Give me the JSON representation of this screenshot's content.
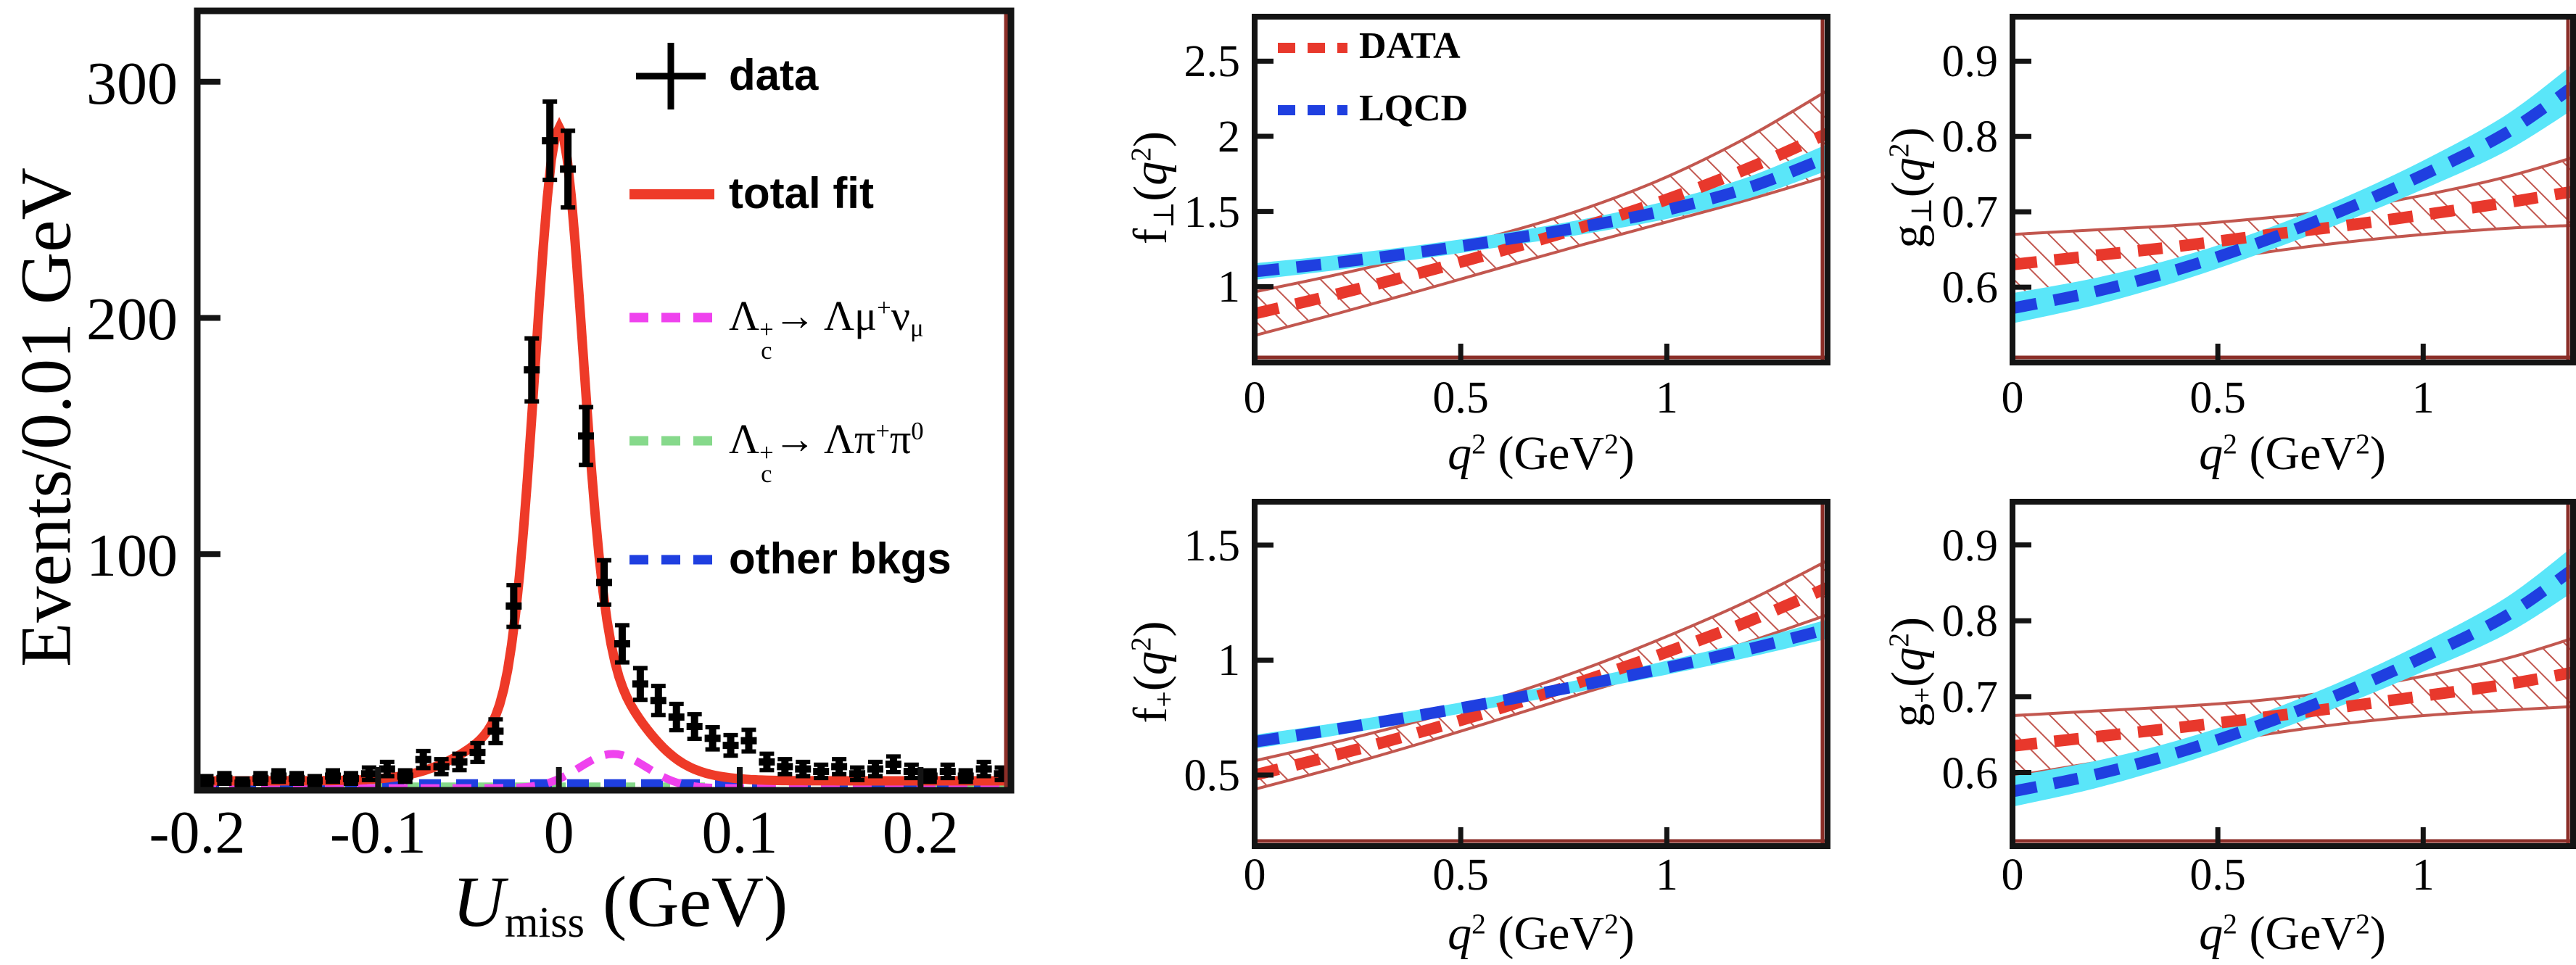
{
  "page": {
    "background": "#ffffff",
    "description_visible_text_only": true
  },
  "colors": {
    "frame": "#141414",
    "data_marker": "#000000",
    "total_fit": "#ee3a28",
    "signal_munu": "#ef42ee",
    "lambda_pipi": "#86d98b",
    "other_bkgs": "#1f3fe0",
    "data_curve": "#e8382c",
    "data_band_line": "#c2574f",
    "lqcd_curve": "#1f3fe0",
    "lqcd_band": "#5ae6f9",
    "accent_line": "#8b2e28"
  },
  "chart_data": [
    {
      "id": "umiss-fit",
      "type": "histogram",
      "title": "",
      "xlabel": "*U*_{miss} (GeV)",
      "ylabel": "Events/0.01 GeV",
      "xlim": [
        -0.2,
        0.25
      ],
      "ylim": [
        0,
        330
      ],
      "xticks": [
        "-0.2",
        "-0.1",
        "0",
        "0.1",
        "0.2"
      ],
      "xtick_vals": [
        -0.2,
        -0.1,
        0,
        0.1,
        0.2
      ],
      "yticks": [
        "100",
        "200",
        "300"
      ],
      "ytick_vals": [
        100,
        200,
        300
      ],
      "bin_width": 0.01,
      "bin_start": -0.2,
      "counts": [
        4,
        5,
        3,
        5,
        6,
        5,
        4,
        6,
        5,
        7,
        9,
        6,
        13,
        10,
        12,
        16,
        25,
        78,
        178,
        275,
        263,
        150,
        88,
        62,
        45,
        38,
        31,
        27,
        22,
        19,
        21,
        12,
        10,
        9,
        8,
        10,
        7,
        9,
        11,
        8,
        6,
        8,
        6,
        9,
        7
      ],
      "fit_components": {
        "gauss_core": {
          "amp": 240,
          "mean": 0,
          "sigma": 0.013
        },
        "gauss_wide": {
          "amp": 33,
          "mean": 0,
          "sigma": 0.037
        },
        "baseline": 4.0,
        "munu_fraction_in_total": 0.9
      },
      "munu_bump": {
        "amp": 14.5,
        "mean": 0.03,
        "sigma": 0.0185,
        "baseline": 0.9
      },
      "pipi_level": 1.6,
      "other_level": 3.0,
      "legend": [
        {
          "id": "data",
          "label": "data",
          "marker": "plus",
          "color": "#000000",
          "style": "sans"
        },
        {
          "id": "total-fit",
          "label": "total fit",
          "marker": "solid-line",
          "color": "#ee3a28",
          "style": "sans"
        },
        {
          "id": "lc-munu",
          "label": "Λ_{c}^{+}→ Λμ^{+}ν_{μ}",
          "marker": "dashed-line",
          "color": "#ef42ee",
          "style": "formula"
        },
        {
          "id": "lc-pipi",
          "label": "Λ_{c}^{+}→ Λπ^{+}π^{0}",
          "marker": "dashed-line",
          "color": "#86d98b",
          "style": "formula"
        },
        {
          "id": "other-bkgs",
          "label": "other bkgs",
          "marker": "dashed-line",
          "color": "#1f3fe0",
          "style": "sans"
        }
      ]
    },
    {
      "id": "f-perp",
      "type": "line",
      "xlabel": "*q*^{2} (GeV^{2})",
      "ylabel": "f_{⊥}(*q*^{2})",
      "xlim": [
        0,
        1.39
      ],
      "ylim": [
        0.495,
        2.796
      ],
      "xticks": [
        "0",
        "0.5",
        "1"
      ],
      "xtick_vals": [
        0,
        0.5,
        1
      ],
      "yticks": [
        "1",
        "1.5",
        "2",
        "2.5"
      ],
      "ytick_vals": [
        1,
        1.5,
        2,
        2.5
      ],
      "x": [
        0,
        0.2,
        0.4,
        0.6,
        0.8,
        1.0,
        1.2,
        1.4
      ],
      "series": [
        {
          "name": "DATA",
          "center": [
            0.82,
            0.95,
            1.09,
            1.24,
            1.4,
            1.58,
            1.79,
            2.02
          ],
          "half_width": [
            0.145,
            0.13,
            0.118,
            0.112,
            0.118,
            0.15,
            0.21,
            0.285
          ],
          "style": "red-dashed-hatched-band"
        },
        {
          "name": "LQCD",
          "center": [
            1.1,
            1.16,
            1.23,
            1.31,
            1.4,
            1.51,
            1.66,
            1.86
          ],
          "half_width": [
            0.055,
            0.05,
            0.046,
            0.045,
            0.05,
            0.06,
            0.072,
            0.088
          ],
          "style": "blue-dashed-cyan-band"
        }
      ],
      "legend": {
        "show": true,
        "position": "top-left",
        "entries": [
          "DATA",
          "LQCD"
        ]
      }
    },
    {
      "id": "g-perp",
      "type": "line",
      "xlabel": "*q*^{2} (GeV^{2})",
      "ylabel": "g_{⊥}(*q*^{2})",
      "xlim": [
        0,
        1.365
      ],
      "ylim": [
        0.5,
        0.959
      ],
      "xticks": [
        "0",
        "0.5",
        "1"
      ],
      "xtick_vals": [
        0,
        0.5,
        1
      ],
      "yticks": [
        "0.6",
        "0.7",
        "0.8",
        "0.9"
      ],
      "ytick_vals": [
        0.6,
        0.7,
        0.8,
        0.9
      ],
      "x": [
        0,
        0.2,
        0.4,
        0.6,
        0.8,
        1.0,
        1.2,
        1.4
      ],
      "series": [
        {
          "name": "DATA",
          "center": [
            0.63,
            0.642,
            0.654,
            0.668,
            0.681,
            0.696,
            0.712,
            0.727
          ],
          "half_width": [
            0.04,
            0.034,
            0.028,
            0.023,
            0.022,
            0.026,
            0.034,
            0.045
          ],
          "style": "red-dashed-hatched-band"
        },
        {
          "name": "LQCD",
          "center": [
            0.572,
            0.594,
            0.623,
            0.659,
            0.701,
            0.749,
            0.804,
            0.866
          ],
          "half_width": [
            0.02,
            0.018,
            0.016,
            0.015,
            0.016,
            0.019,
            0.024,
            0.03
          ],
          "style": "blue-dashed-cyan-band"
        }
      ],
      "legend": {
        "show": false,
        "entries": []
      }
    },
    {
      "id": "f-plus",
      "type": "line",
      "xlabel": "*q*^{2} (GeV^{2})",
      "ylabel": "f_{+}(*q*^{2})",
      "xlim": [
        0,
        1.39
      ],
      "ylim": [
        0.191,
        1.689
      ],
      "xticks": [
        "0",
        "0.5",
        "1"
      ],
      "xtick_vals": [
        0,
        0.5,
        1
      ],
      "yticks": [
        "0.5",
        "1",
        "1.5"
      ],
      "ytick_vals": [
        0.5,
        1,
        1.5
      ],
      "x": [
        0,
        0.2,
        0.4,
        0.6,
        0.8,
        1.0,
        1.2,
        1.4
      ],
      "series": [
        {
          "name": "DATA",
          "center": [
            0.5,
            0.589,
            0.686,
            0.793,
            0.91,
            1.035,
            1.17,
            1.315
          ],
          "half_width": [
            0.062,
            0.056,
            0.05,
            0.047,
            0.052,
            0.068,
            0.09,
            0.118
          ],
          "style": "red-dashed-hatched-band"
        },
        {
          "name": "LQCD",
          "center": [
            0.645,
            0.7,
            0.76,
            0.824,
            0.893,
            0.967,
            1.048,
            1.135
          ],
          "half_width": [
            0.03,
            0.027,
            0.025,
            0.024,
            0.026,
            0.03,
            0.035,
            0.042
          ],
          "style": "blue-dashed-cyan-band"
        }
      ],
      "legend": {
        "show": false,
        "entries": []
      }
    },
    {
      "id": "g-plus",
      "type": "line",
      "xlabel": "*q*^{2} (GeV^{2})",
      "ylabel": "g_{+}(*q*^{2})",
      "xlim": [
        0,
        1.365
      ],
      "ylim": [
        0.503,
        0.957
      ],
      "xticks": [
        "0",
        "0.5",
        "1"
      ],
      "xtick_vals": [
        0,
        0.5,
        1
      ],
      "yticks": [
        "0.6",
        "0.7",
        "0.8",
        "0.9"
      ],
      "ytick_vals": [
        0.6,
        0.7,
        0.8,
        0.9
      ],
      "x": [
        0,
        0.2,
        0.4,
        0.6,
        0.8,
        1.0,
        1.2,
        1.4
      ],
      "series": [
        {
          "name": "DATA",
          "center": [
            0.635,
            0.647,
            0.659,
            0.672,
            0.686,
            0.701,
            0.716,
            0.732
          ],
          "half_width": [
            0.04,
            0.034,
            0.028,
            0.023,
            0.022,
            0.026,
            0.034,
            0.045
          ],
          "style": "red-dashed-hatched-band"
        },
        {
          "name": "LQCD",
          "center": [
            0.575,
            0.597,
            0.626,
            0.662,
            0.704,
            0.752,
            0.806,
            0.868
          ],
          "half_width": [
            0.02,
            0.018,
            0.016,
            0.015,
            0.016,
            0.019,
            0.024,
            0.03
          ],
          "style": "blue-dashed-cyan-band"
        }
      ],
      "legend": {
        "show": false,
        "entries": []
      }
    }
  ]
}
